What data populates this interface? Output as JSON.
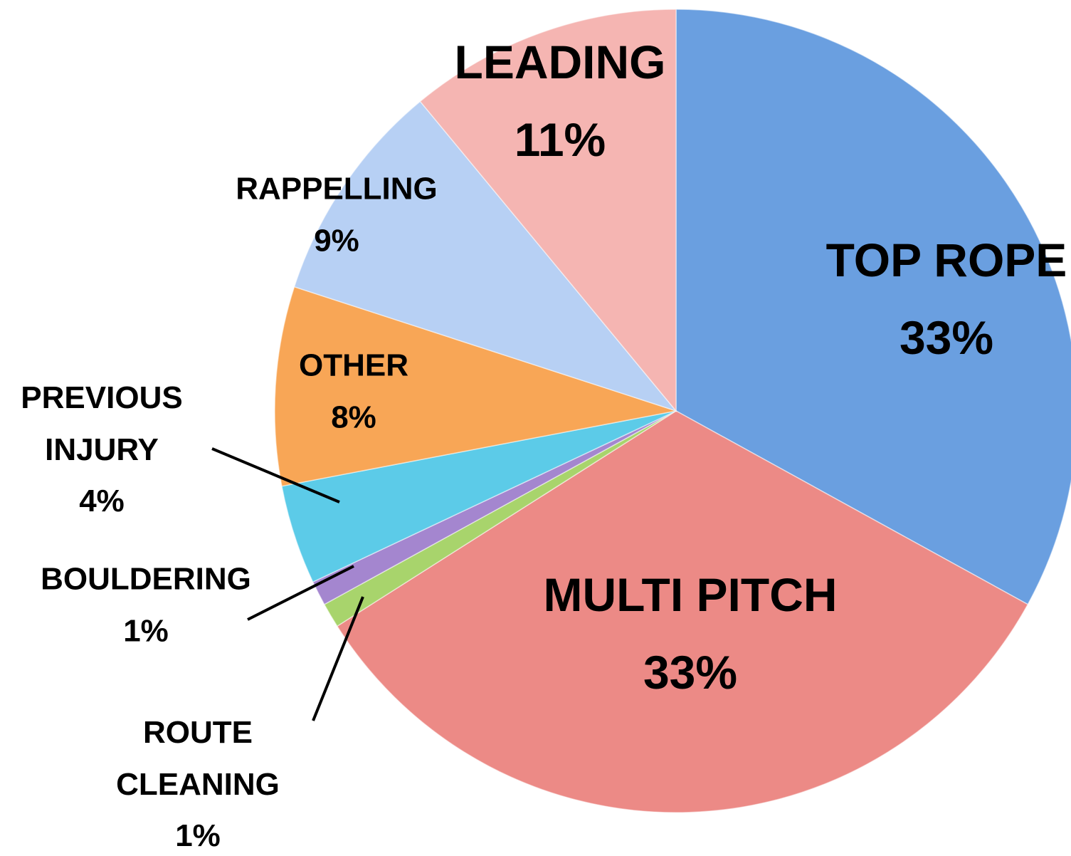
{
  "chart_data": {
    "type": "pie",
    "categories": [
      "TOP ROPE",
      "MULTI PITCH",
      "ROUTE CLEANING",
      "BOULDERING",
      "PREVIOUS INJURY",
      "OTHER",
      "RAPPELLING",
      "LEADING"
    ],
    "values": [
      33,
      33,
      1,
      1,
      4,
      8,
      9,
      11
    ],
    "value_labels": [
      "33%",
      "33%",
      "1%",
      "1%",
      "4%",
      "8%",
      "9%",
      "11%"
    ],
    "colors": [
      "#6a9fe0",
      "#ec8a86",
      "#a8d46c",
      "#a486cf",
      "#5ccbe8",
      "#f8a656",
      "#b7d0f4",
      "#f5b5b2"
    ]
  }
}
